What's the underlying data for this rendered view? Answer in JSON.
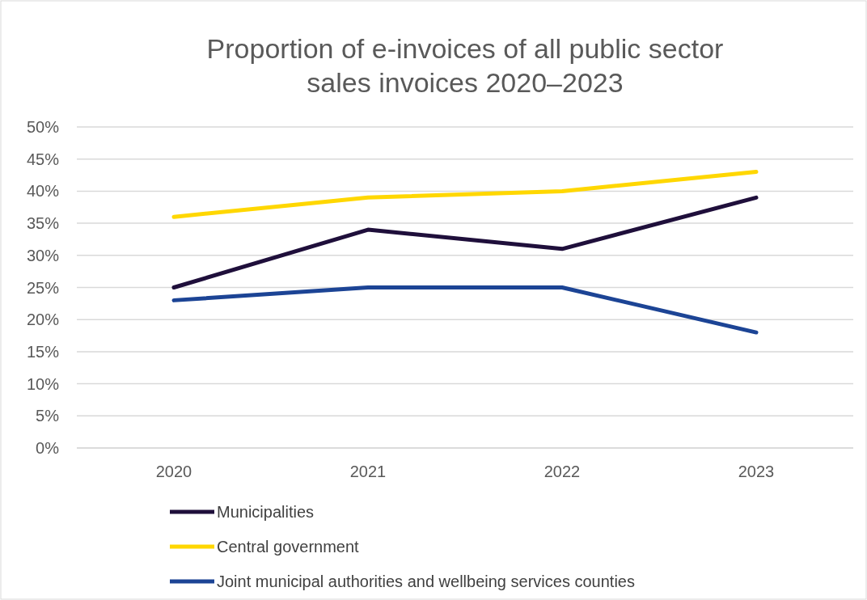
{
  "chart_data": {
    "type": "line",
    "title": "Proportion of e-invoices of all public sector sales invoices 2020–2023",
    "categories": [
      "2020",
      "2021",
      "2022",
      "2023"
    ],
    "series": [
      {
        "name": "Municipalities",
        "color": "#1f0f3b",
        "values": [
          25,
          34,
          31,
          39
        ]
      },
      {
        "name": "Central government",
        "color": "#ffd700",
        "values": [
          36,
          39,
          40,
          43
        ]
      },
      {
        "name": "Joint municipal authorities and wellbeing services counties",
        "color": "#1c4495",
        "values": [
          23,
          25,
          25,
          18
        ]
      }
    ],
    "ylim": [
      0,
      50
    ],
    "yticks": [
      {
        "value": 0,
        "label": "0%"
      },
      {
        "value": 5,
        "label": "5%"
      },
      {
        "value": 10,
        "label": "10%"
      },
      {
        "value": 15,
        "label": "15%"
      },
      {
        "value": 20,
        "label": "20%"
      },
      {
        "value": 25,
        "label": "25%"
      },
      {
        "value": 30,
        "label": "30%"
      },
      {
        "value": 35,
        "label": "35%"
      },
      {
        "value": 40,
        "label": "40%"
      },
      {
        "value": 45,
        "label": "45%"
      },
      {
        "value": 50,
        "label": "50%"
      }
    ],
    "grid": "y",
    "legend": "bottom",
    "marker": "none",
    "line_style": "solid"
  }
}
